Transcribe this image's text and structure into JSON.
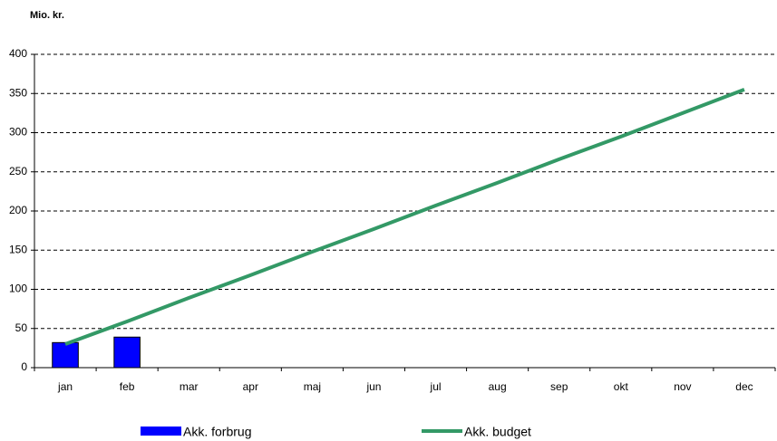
{
  "chart_data": {
    "type": "bar",
    "y_label": "Mio. kr.",
    "categories": [
      "jan",
      "feb",
      "mar",
      "apr",
      "maj",
      "jun",
      "jul",
      "aug",
      "sep",
      "okt",
      "nov",
      "dec"
    ],
    "series": [
      {
        "name": "Akk. forbrug",
        "type": "bar",
        "color": "#0000ff",
        "values": [
          32,
          39,
          null,
          null,
          null,
          null,
          null,
          null,
          null,
          null,
          null,
          null
        ]
      },
      {
        "name": "Akk. budget",
        "type": "line",
        "color": "#339966",
        "values": [
          30,
          59,
          89,
          118,
          148,
          177,
          207,
          236,
          266,
          295,
          325,
          355
        ]
      }
    ],
    "ylim": [
      0,
      400
    ],
    "yticks": [
      0,
      50,
      100,
      150,
      200,
      250,
      300,
      350,
      400
    ],
    "grid": true,
    "legend": "bottom"
  }
}
